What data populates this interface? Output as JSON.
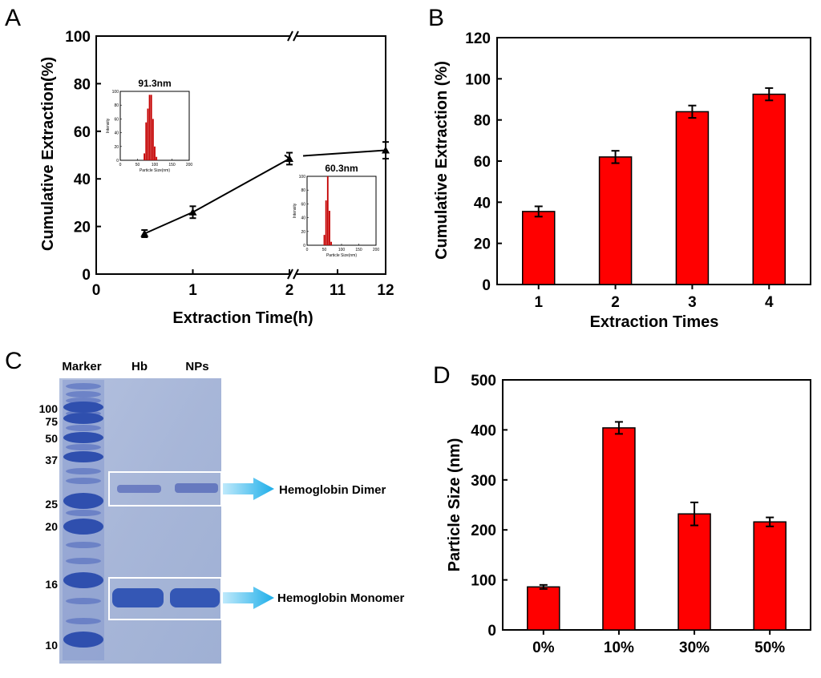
{
  "chart_data": [
    {
      "panel": "A",
      "type": "line",
      "xlabel": "Extraction Time(h)",
      "ylabel": "Cumulative Extraction(%)",
      "ylim": [
        0,
        100
      ],
      "yticks": [
        "0",
        "20",
        "40",
        "60",
        "80",
        "100"
      ],
      "xticks": [
        "0",
        "1",
        "2",
        "11",
        "12"
      ],
      "x": [
        0.5,
        1,
        2,
        12
      ],
      "y": [
        17,
        26,
        48.5,
        52
      ],
      "err": [
        1.5,
        2.5,
        2.5,
        3.5
      ],
      "axis_break": "between 2 and 11",
      "insets": [
        {
          "type": "bar",
          "title": "91.3nm",
          "xlabel": "Particle Size(nm)",
          "ylabel": "Intensity",
          "xlim": [
            0,
            200
          ],
          "ylim": [
            0,
            100
          ],
          "xticks": [
            "0",
            "50",
            "100",
            "150",
            "200"
          ],
          "yticks": [
            "0",
            "20",
            "40",
            "60",
            "80",
            "100"
          ],
          "x": [
            70,
            75,
            80,
            85,
            90,
            95,
            100,
            105
          ],
          "values": [
            10,
            55,
            75,
            95,
            95,
            60,
            20,
            5
          ]
        },
        {
          "type": "bar",
          "title": "60.3nm",
          "xlabel": "Particle Size(nm)",
          "ylabel": "Intensity",
          "xlim": [
            0,
            200
          ],
          "ylim": [
            0,
            100
          ],
          "xticks": [
            "0",
            "50",
            "100",
            "150",
            "200"
          ],
          "yticks": [
            "0",
            "20",
            "40",
            "60",
            "80",
            "100"
          ],
          "x": [
            50,
            55,
            60,
            65,
            70
          ],
          "values": [
            15,
            65,
            100,
            50,
            5
          ]
        }
      ]
    },
    {
      "panel": "B",
      "type": "bar",
      "categories": [
        "1",
        "2",
        "3",
        "4"
      ],
      "values": [
        35.5,
        62,
        84,
        92.5
      ],
      "err": [
        2.5,
        3,
        3,
        3
      ],
      "xlabel": "Extraction Times",
      "ylabel": "Cumulative Extraction (%)",
      "ylim": [
        0,
        120
      ],
      "yticks": [
        "0",
        "20",
        "40",
        "60",
        "80",
        "100",
        "120"
      ]
    },
    {
      "panel": "D",
      "type": "bar",
      "categories": [
        "0%",
        "10%",
        "30%",
        "50%"
      ],
      "values": [
        86,
        404,
        232,
        216
      ],
      "err": [
        4,
        12,
        23,
        9
      ],
      "xlabel": "",
      "ylabel": "Particle Size (nm)",
      "ylim": [
        0,
        500
      ],
      "yticks": [
        "0",
        "100",
        "200",
        "300",
        "400",
        "500"
      ]
    }
  ],
  "panels": {
    "a": "A",
    "b": "B",
    "c": "C",
    "d": "D"
  },
  "gel": {
    "lane_marker": "Marker",
    "lane_hb": "Hb",
    "lane_nps": "NPs",
    "marker_sizes": [
      "100",
      "75",
      "50",
      "37",
      "25",
      "20",
      "16",
      "10"
    ],
    "label_dimer": "Hemoglobin Dimer",
    "label_monomer": "Hemoglobin Monomer",
    "colors": {
      "gel": "#aab9da",
      "band": "#2f4fae",
      "arrow": "#2ab4ec"
    }
  },
  "colors": {
    "bar": "#ff0000",
    "inset_bar": "#c40000"
  }
}
